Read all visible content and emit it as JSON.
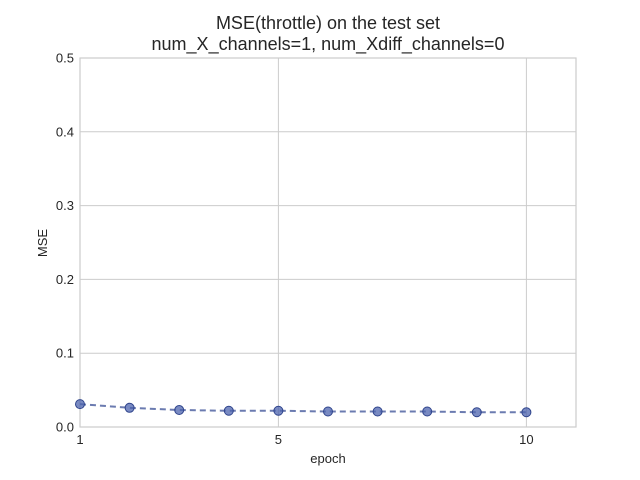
{
  "chart_data": {
    "type": "line",
    "title": "MSE(throttle) on the test set",
    "subtitle": "num_X_channels=1, num_Xdiff_channels=0",
    "xlabel": "epoch",
    "ylabel": "MSE",
    "xlim": [
      1,
      11
    ],
    "ylim": [
      0,
      0.5
    ],
    "xticks": [
      1,
      5,
      10
    ],
    "yticks": [
      0.0,
      0.1,
      0.2,
      0.3,
      0.4,
      0.5
    ],
    "xtick_labels": [
      "1",
      "5",
      "10"
    ],
    "ytick_labels": [
      "0.0",
      "0.1",
      "0.2",
      "0.3",
      "0.4",
      "0.5"
    ],
    "grid": true,
    "series": [
      {
        "x": [
          1,
          2,
          3,
          4,
          5,
          6,
          7,
          8,
          9,
          10
        ],
        "values": [
          0.031,
          0.026,
          0.023,
          0.022,
          0.022,
          0.021,
          0.021,
          0.021,
          0.02,
          0.02
        ],
        "color": "#4c63ad",
        "line_style": "dashed",
        "marker": "circle"
      }
    ]
  }
}
